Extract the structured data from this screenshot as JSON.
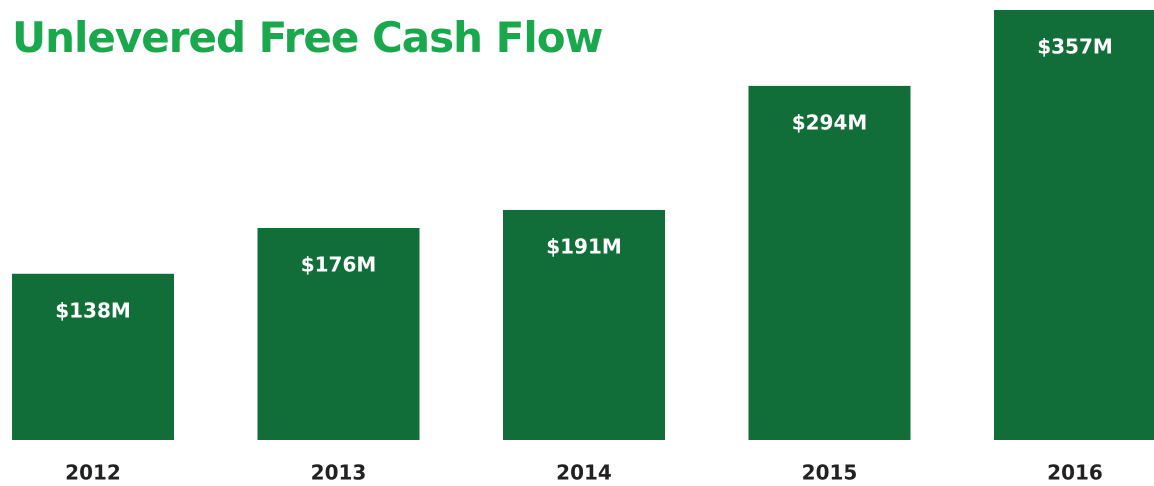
{
  "chart_data": {
    "type": "bar",
    "title": "Unlevered Free Cash Flow",
    "categories": [
      "2012",
      "2013",
      "2014",
      "2015",
      "2016"
    ],
    "values": [
      138,
      176,
      191,
      294,
      357
    ],
    "value_labels": [
      "$138M",
      "$176M",
      "$191M",
      "$294M",
      "$357M"
    ],
    "color": "#116e39"
  }
}
